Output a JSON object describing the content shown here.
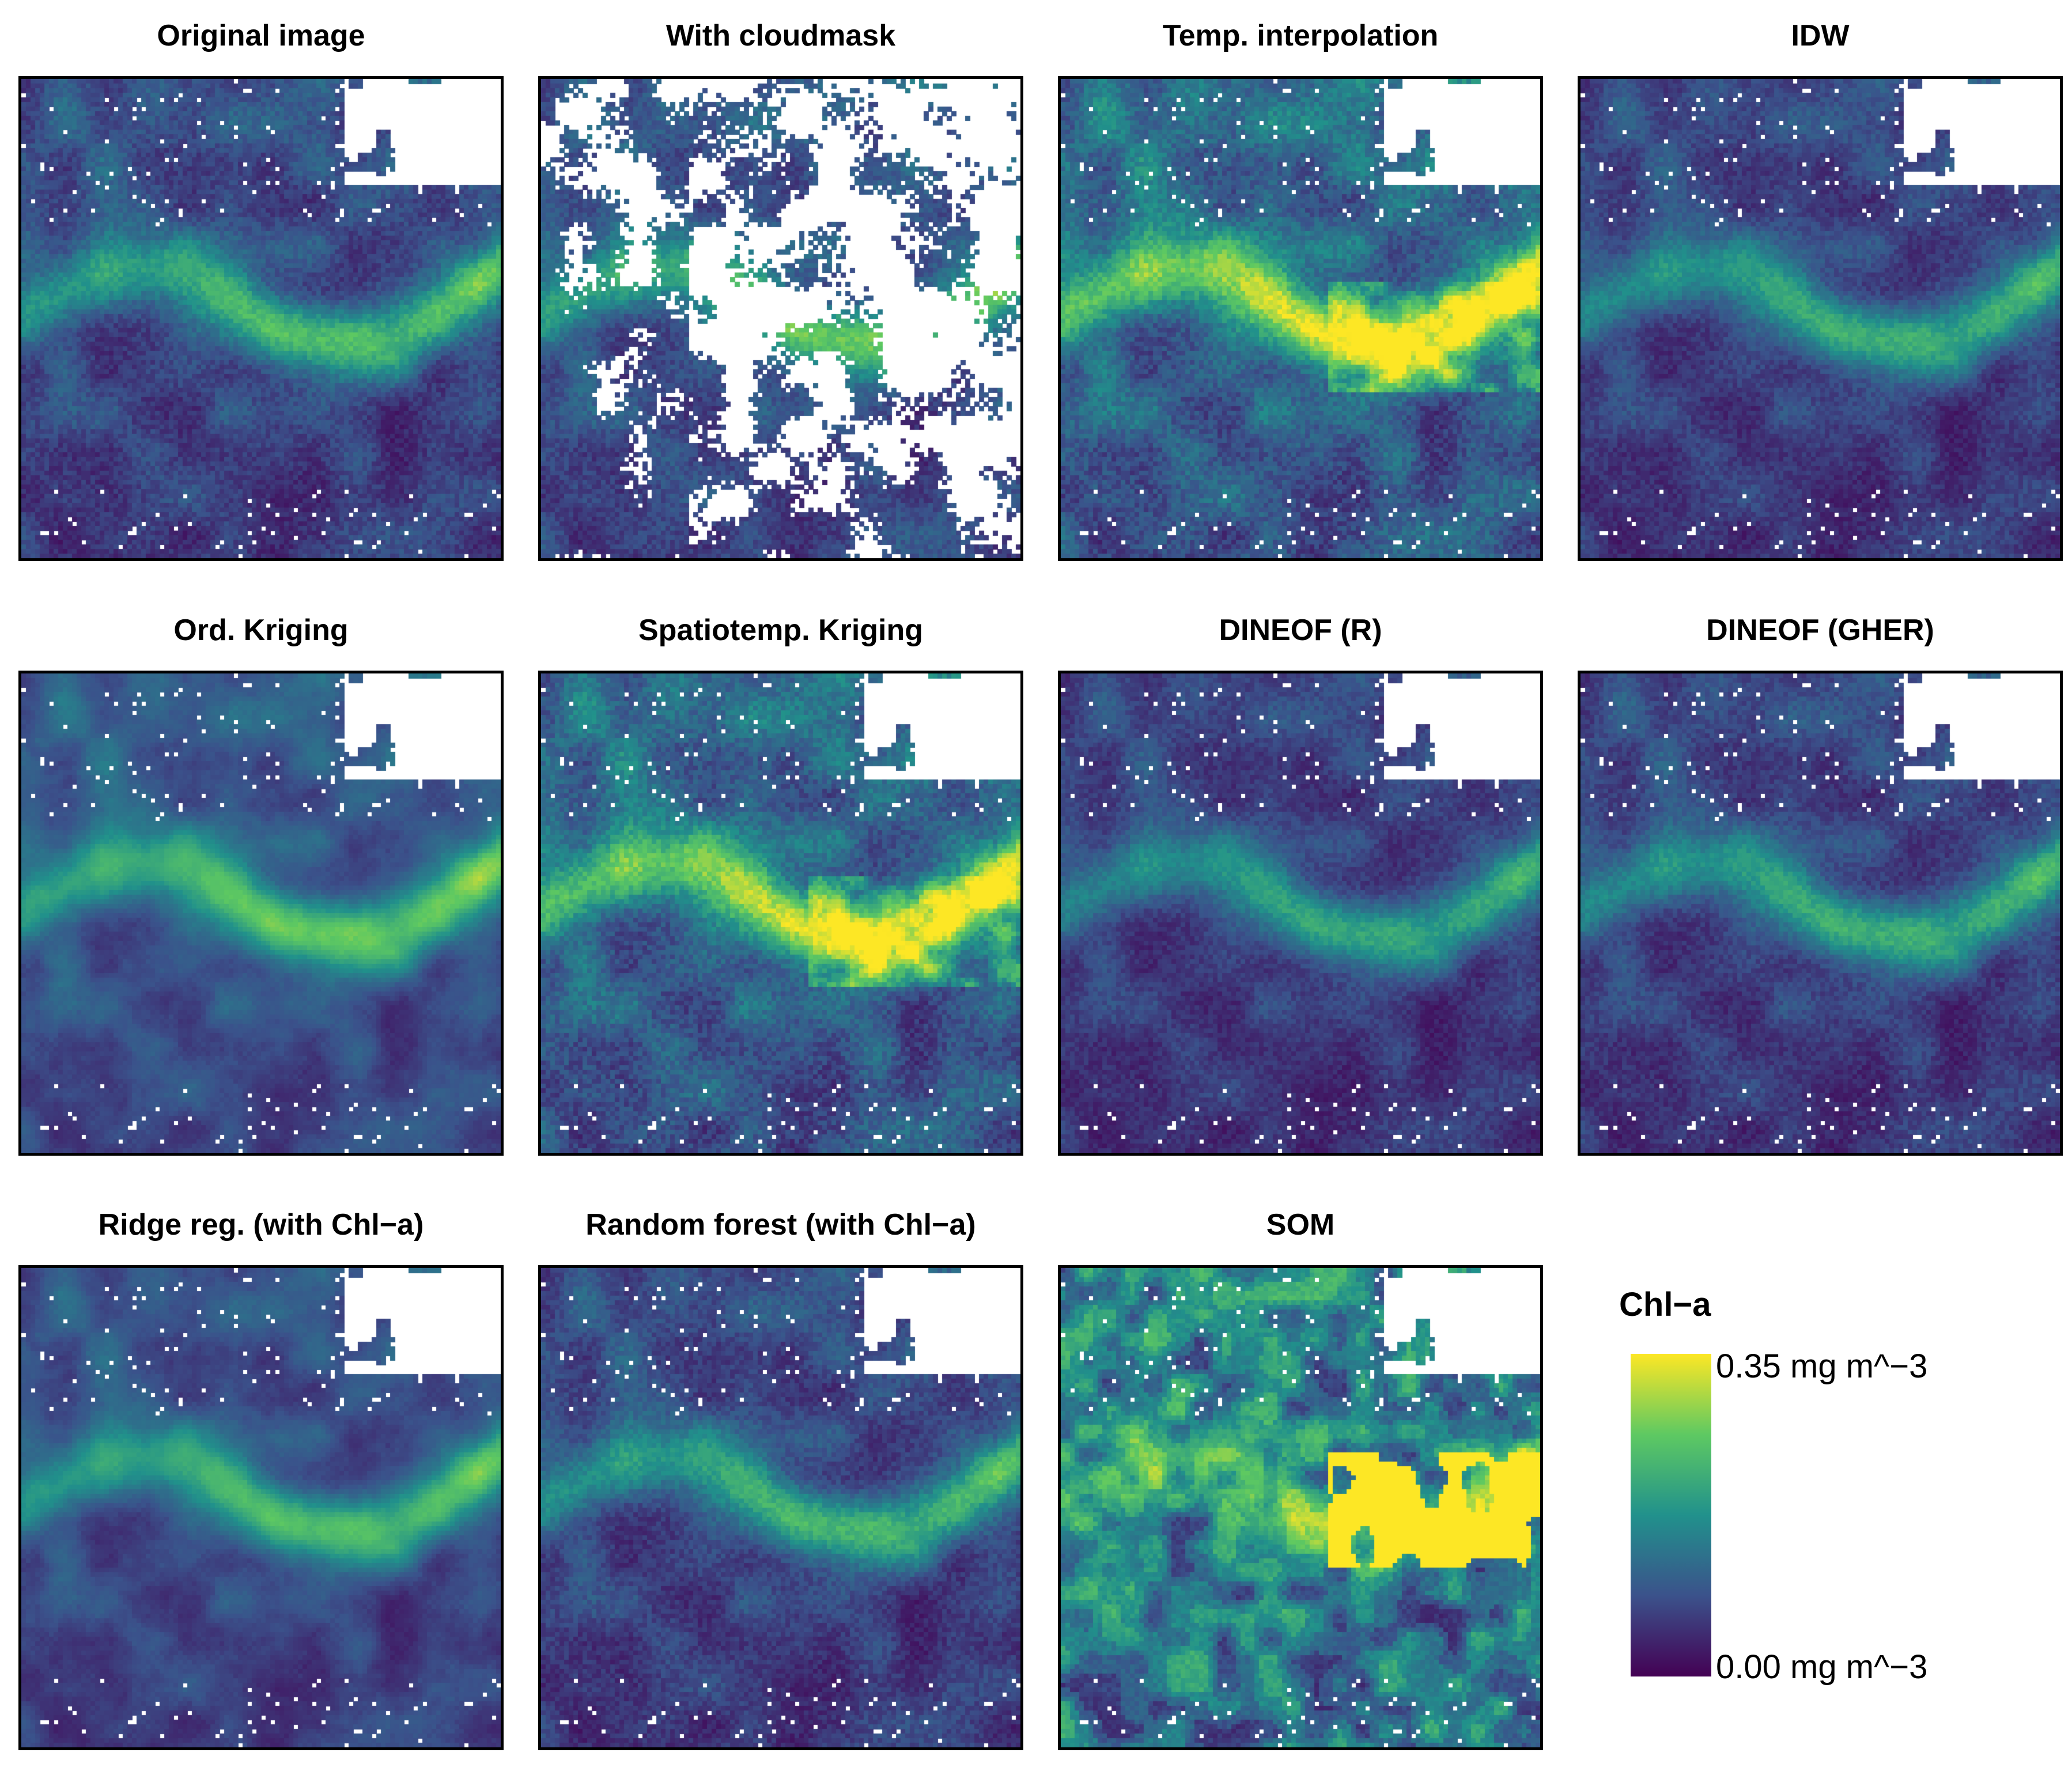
{
  "chart_data": {
    "type": "heatmap",
    "panels": [
      {
        "title": "Original image",
        "variant": "original"
      },
      {
        "title": "With cloudmask",
        "variant": "cloudmask"
      },
      {
        "title": "Temp. interpolation",
        "variant": "temp"
      },
      {
        "title": "IDW",
        "variant": "idw"
      },
      {
        "title": "Ord. Kriging",
        "variant": "okrig"
      },
      {
        "title": "Spatiotemp. Kriging",
        "variant": "stkrig"
      },
      {
        "title": "DINEOF (R)",
        "variant": "dineof_r"
      },
      {
        "title": "DINEOF (GHER)",
        "variant": "dineof_gher"
      },
      {
        "title": "Ridge reg. (with Chl−a)",
        "variant": "ridge"
      },
      {
        "title": "Random forest (with Chl−a)",
        "variant": "rf"
      },
      {
        "title": "SOM",
        "variant": "som"
      }
    ],
    "colorbar": {
      "title": "Chl−a",
      "max_label": "0.35 mg m^−3",
      "min_label": "0.00 mg m^−3",
      "range": [
        0,
        0.35
      ],
      "unit": "mg m^-3",
      "colormap": "viridis",
      "colors": [
        "#440154",
        "#3b528b",
        "#21918c",
        "#5ec962",
        "#fde725"
      ]
    },
    "missing_color": "#ffffff"
  }
}
